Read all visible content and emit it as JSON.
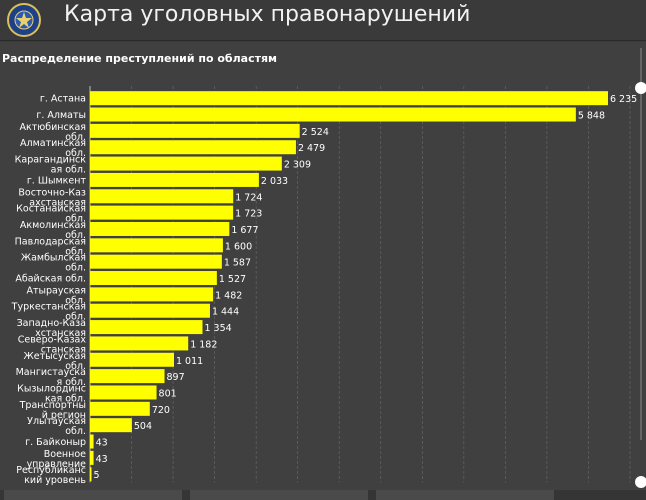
{
  "header": {
    "title": "Карта уголовных правонарушений",
    "logo_icon": "emblem-icon"
  },
  "panel": {
    "title": "Распределение преступлений по областям"
  },
  "colors": {
    "bar": "#ffff00",
    "background": "#404040",
    "grid": "#6a6a6a"
  },
  "chart_data": {
    "type": "bar",
    "orientation": "horizontal",
    "categories": [
      "г. Астана",
      "г. Алматы",
      "Актюбинская обл.",
      "Алматинская обл.",
      "Карагандинская обл.",
      "г. Шымкент",
      "Восточно-Казахстанская обл.",
      "Костанайская обл.",
      "Акмолинская обл.",
      "Павлодарская обл.",
      "Жамбылская обл.",
      "Абайская обл.",
      "Атырауская обл.",
      "Туркестанская обл.",
      "Западно-Казахстанская обл.",
      "Северо-Казахстанская обл.",
      "Жетысуская обл.",
      "Мангистауская обл.",
      "Кызылординская обл.",
      "Транспортный регион",
      "Улытауская обл.",
      "г. Байконыр",
      "Военное управление",
      "Республиканский уровень"
    ],
    "labels": [
      [
        "г. Астана"
      ],
      [
        "г. Алматы"
      ],
      [
        "Актюбинская",
        "обл."
      ],
      [
        "Алматинская",
        "обл."
      ],
      [
        "Карагандинск",
        "ая обл."
      ],
      [
        "г. Шымкент"
      ],
      [
        "Восточно-Каз",
        "ахстанская"
      ],
      [
        "Костанайская",
        "обл."
      ],
      [
        "Акмолинская",
        "обл."
      ],
      [
        "Павлодарская",
        "обл."
      ],
      [
        "Жамбылская",
        "обл."
      ],
      [
        "Абайская обл."
      ],
      [
        "Атырауская",
        "обл."
      ],
      [
        "Туркестанская",
        "обл."
      ],
      [
        "Западно-Каза",
        "хстанская"
      ],
      [
        "Северо-Казах",
        "станская"
      ],
      [
        "Жетысуская",
        "обл."
      ],
      [
        "Мангистауска",
        "я обл."
      ],
      [
        "Кызылординс",
        "кая обл."
      ],
      [
        "Транспортны",
        "й регион"
      ],
      [
        "Улытауская",
        "обл."
      ],
      [
        "г. Байконыр"
      ],
      [
        "Военное",
        "управление"
      ],
      [
        "Республиканс",
        "кий уровень"
      ]
    ],
    "values": [
      6235,
      5848,
      2524,
      2479,
      2309,
      2033,
      1724,
      1723,
      1677,
      1600,
      1587,
      1527,
      1482,
      1444,
      1354,
      1182,
      1011,
      897,
      801,
      720,
      504,
      43,
      43,
      5
    ],
    "value_labels": [
      "6 235",
      "5 848",
      "2 524",
      "2 479",
      "2 309",
      "2 033",
      "1 724",
      "1 723",
      "1 677",
      "1 600",
      "1 587",
      "1 527",
      "1 482",
      "1 444",
      "1 354",
      "1 182",
      "1 011",
      "897",
      "801",
      "720",
      "504",
      "43",
      "43",
      "5"
    ],
    "xlim": [
      0,
      6500
    ],
    "grid": true,
    "legend": "none",
    "xlabel": "",
    "ylabel": ""
  }
}
